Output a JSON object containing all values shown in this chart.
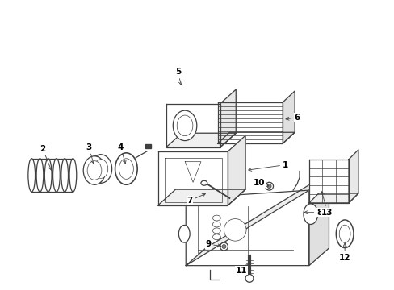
{
  "background_color": "#ffffff",
  "line_color": "#404040",
  "figsize": [
    4.89,
    3.6
  ],
  "dpi": 100
}
